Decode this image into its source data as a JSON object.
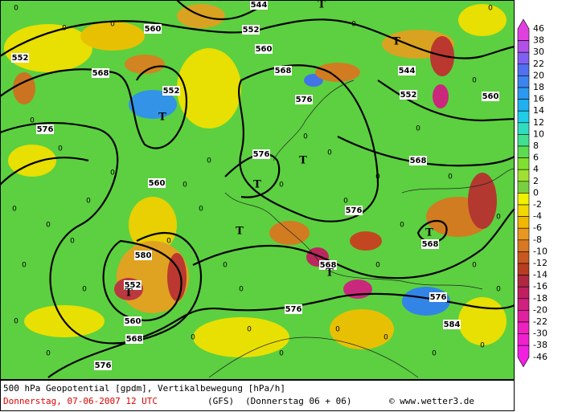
{
  "map": {
    "contour_labels": [
      "552",
      "552",
      "552",
      "552",
      "552",
      "560",
      "560",
      "560",
      "560",
      "560",
      "580",
      "568",
      "568",
      "568",
      "568",
      "568",
      "568",
      "576",
      "576",
      "576",
      "576",
      "576",
      "576",
      "576",
      "584",
      "544",
      "544"
    ],
    "high_low_marks": [
      "T",
      "T",
      "T",
      "T",
      "T",
      "T",
      "T",
      "T",
      "T"
    ],
    "zero_label": "0"
  },
  "legend": {
    "labels": [
      46,
      38,
      30,
      22,
      20,
      18,
      16,
      14,
      12,
      10,
      8,
      6,
      4,
      2,
      0,
      -2,
      -4,
      -6,
      -8,
      -10,
      -12,
      -14,
      -16,
      -18,
      -20,
      -22,
      -30,
      -38,
      -46
    ],
    "colors": [
      "#e040e0",
      "#b050e8",
      "#8060f0",
      "#5070f0",
      "#3c84f0",
      "#2c98f0",
      "#20b0f0",
      "#20cce8",
      "#30dcc0",
      "#40e090",
      "#5cdc50",
      "#80e030",
      "#a0e030",
      "#78d040",
      "#f0f000",
      "#f0d800",
      "#f0b800",
      "#e89820",
      "#d87820",
      "#c85820",
      "#b83c20",
      "#b02840",
      "#c02060",
      "#d02080",
      "#e020a0",
      "#f020c0",
      "#f020d0",
      "#f020e0"
    ]
  },
  "footer": {
    "line1": "500 hPa Geopotential [gpdm], Vertikalbewegung [hPa/h]",
    "date": "Donnerstag, 07-06-2007  12 UTC",
    "model": "(GFS)",
    "run": "(Donnerstag 06 + 06)",
    "copyright": "© www.wetter3.de"
  }
}
